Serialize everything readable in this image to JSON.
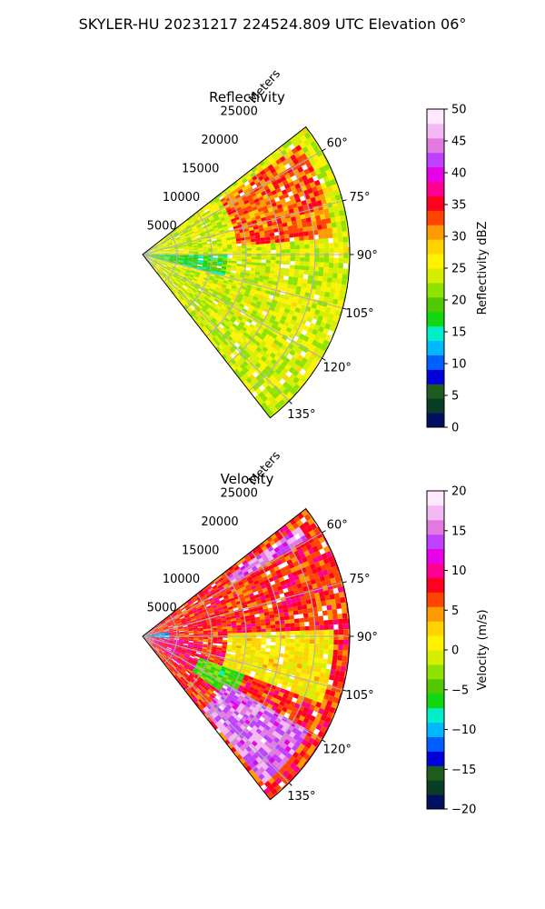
{
  "page_title": "SKYLER-HU  20231217  224524.809 UTC Elevation 06°",
  "chart_data": [
    {
      "type": "heatmap",
      "projection": "polar-sector",
      "title": "Reflectivity",
      "radial_label": "Meters",
      "radial_ticks": [
        "5000",
        "10000",
        "15000",
        "20000",
        "25000"
      ],
      "radial_tick_values": [
        5000,
        10000,
        15000,
        20000,
        25000
      ],
      "rlim": [
        0,
        30000
      ],
      "angle_ticks": [
        "60°",
        "75°",
        "90°",
        "105°",
        "120°",
        "135°"
      ],
      "angle_tick_values": [
        60,
        75,
        90,
        105,
        120,
        135
      ],
      "theta_range": [
        52,
        142
      ],
      "grid": true,
      "colorbar": {
        "label": "Reflectivity dBZ",
        "ticks": [
          "0",
          "5",
          "10",
          "15",
          "20",
          "25",
          "30",
          "35",
          "40",
          "45",
          "50"
        ],
        "vmin": 0,
        "vmax": 50,
        "stops": [
          "#001060",
          "#0a3c26",
          "#1e5c1e",
          "#0000d8",
          "#0060ff",
          "#00b8ff",
          "#00eec8",
          "#12d812",
          "#52c800",
          "#8ee400",
          "#d6ee00",
          "#fff200",
          "#ffd200",
          "#ff9a00",
          "#ff4400",
          "#ff0020",
          "#ff0090",
          "#e800e8",
          "#c040ff",
          "#e07ae0",
          "#f4b8f4",
          "#ffe8ff"
        ]
      },
      "field_summary": [
        {
          "theta_range": [
            55,
            85
          ],
          "r_range": [
            14000,
            28000
          ],
          "typical_value": 32
        },
        {
          "theta_range": [
            85,
            140
          ],
          "r_range": [
            0,
            28000
          ],
          "typical_value": 24
        },
        {
          "theta_range": [
            90,
            105
          ],
          "r_range": [
            0,
            12000
          ],
          "typical_value": 18
        }
      ]
    },
    {
      "type": "heatmap",
      "projection": "polar-sector",
      "title": "Velocity",
      "radial_label": "Meters",
      "radial_ticks": [
        "5000",
        "10000",
        "15000",
        "20000",
        "25000"
      ],
      "radial_tick_values": [
        5000,
        10000,
        15000,
        20000,
        25000
      ],
      "rlim": [
        0,
        30000
      ],
      "angle_ticks": [
        "60°",
        "75°",
        "90°",
        "105°",
        "120°",
        "135°"
      ],
      "angle_tick_values": [
        60,
        75,
        90,
        105,
        120,
        135
      ],
      "theta_range": [
        52,
        142
      ],
      "grid": true,
      "colorbar": {
        "label": "Velocity (m/s)",
        "ticks": [
          "−20",
          "−15",
          "−10",
          "−5",
          "0",
          "5",
          "10",
          "15",
          "20"
        ],
        "vmin": -20,
        "vmax": 20,
        "stops": [
          "#001060",
          "#0a3c26",
          "#1e5c1e",
          "#0000d8",
          "#0060ff",
          "#00b8ff",
          "#00eec8",
          "#12d812",
          "#52c800",
          "#8ee400",
          "#d6ee00",
          "#fff200",
          "#ffd200",
          "#ff9a00",
          "#ff4400",
          "#ff0020",
          "#ff0090",
          "#e800e8",
          "#c040ff",
          "#e07ae0",
          "#f4b8f4",
          "#ffe8ff"
        ]
      },
      "field_summary": [
        {
          "theta_range": [
            55,
            72
          ],
          "r_range": [
            15000,
            28000
          ],
          "typical_value": 15
        },
        {
          "theta_range": [
            60,
            88
          ],
          "r_range": [
            5000,
            28000
          ],
          "typical_value": 7
        },
        {
          "theta_range": [
            88,
            110
          ],
          "r_range": [
            12000,
            28000
          ],
          "typical_value": 1
        },
        {
          "theta_range": [
            80,
            100
          ],
          "r_range": [
            0,
            4000
          ],
          "typical_value": -11
        },
        {
          "theta_range": [
            95,
            125
          ],
          "r_range": [
            0,
            9000
          ],
          "typical_value": 9
        },
        {
          "theta_range": [
            110,
            125
          ],
          "r_range": [
            9000,
            16000
          ],
          "typical_value": -5
        },
        {
          "theta_range": [
            120,
            140
          ],
          "r_range": [
            14000,
            28000
          ],
          "typical_value": 15
        }
      ]
    }
  ]
}
